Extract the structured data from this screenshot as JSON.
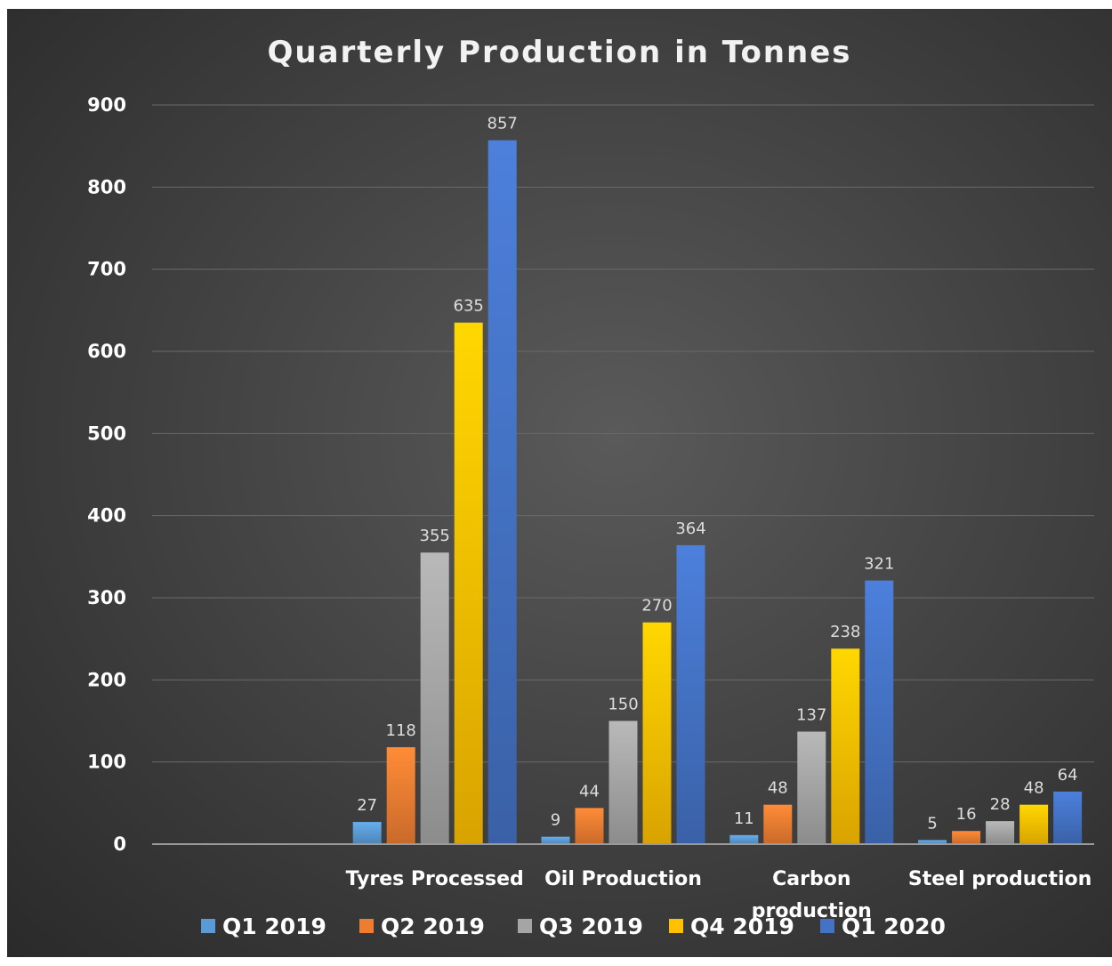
{
  "chart_data": {
    "type": "bar",
    "title": "Quarterly Production in Tonnes",
    "categories": [
      "",
      "Tyres Processed",
      "Oil Production",
      "Carbon production",
      "Steel production"
    ],
    "series": [
      {
        "name": "Q1 2019",
        "color": "#5b9bd5",
        "values": [
          null,
          27,
          9,
          11,
          5
        ]
      },
      {
        "name": "Q2 2019",
        "color": "#ed7d31",
        "values": [
          null,
          118,
          44,
          48,
          16
        ]
      },
      {
        "name": "Q3 2019",
        "color": "#a5a5a5",
        "values": [
          null,
          355,
          150,
          137,
          28
        ]
      },
      {
        "name": "Q4 2019",
        "color": "#ffc000",
        "values": [
          null,
          635,
          270,
          238,
          48
        ]
      },
      {
        "name": "Q1 2020",
        "color": "#4472c4",
        "values": [
          null,
          857,
          364,
          321,
          64
        ]
      }
    ],
    "ylim": [
      0,
      900
    ],
    "yticks": [
      "0",
      "100",
      "200",
      "300",
      "400",
      "500",
      "600",
      "700",
      "800",
      "900"
    ],
    "grid": true,
    "legend_position": "bottom"
  }
}
